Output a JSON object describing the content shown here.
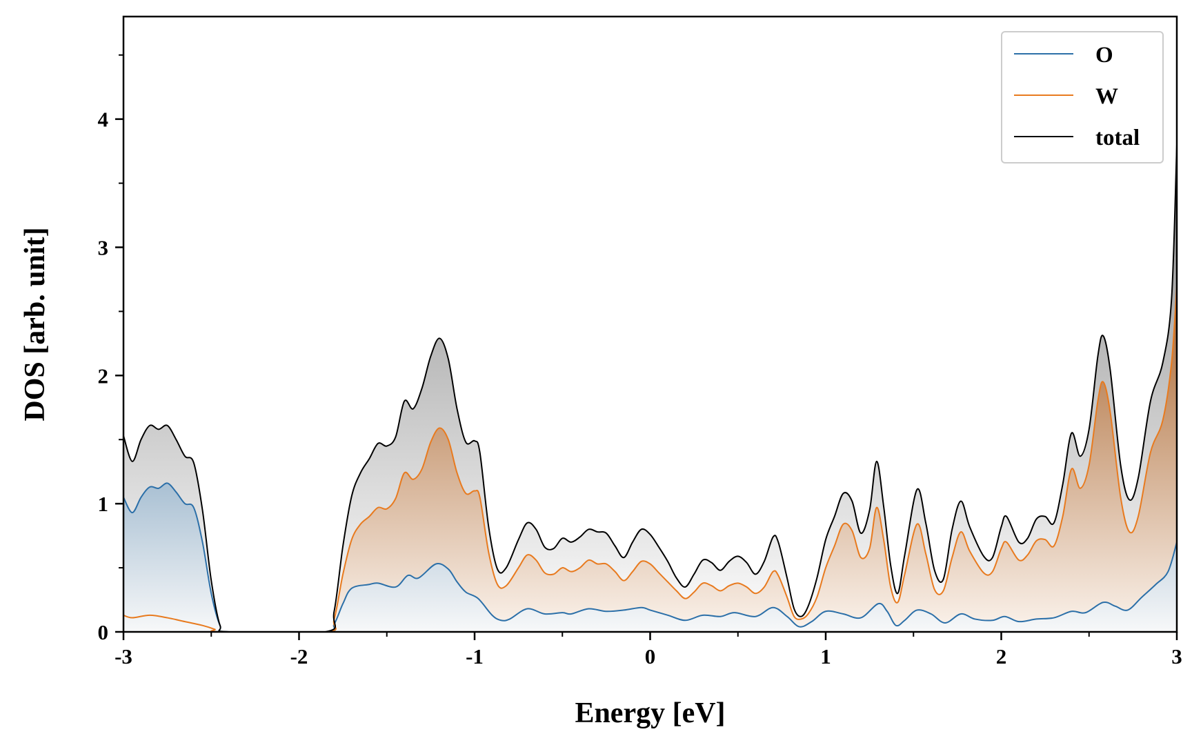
{
  "chart_data": {
    "type": "area",
    "xlabel": "Energy [eV]",
    "ylabel": "DOS [arb. unit]",
    "xlim": [
      -3,
      3
    ],
    "ylim": [
      0,
      4.8
    ],
    "x_ticks": [
      -3,
      -2,
      -1,
      0,
      1,
      2,
      3
    ],
    "x_tick_labels": [
      "-3",
      "-2",
      "-1",
      "0",
      "1",
      "2",
      "3"
    ],
    "y_ticks": [
      0,
      1,
      2,
      3,
      4
    ],
    "y_tick_labels": [
      "0",
      "1",
      "2",
      "3",
      "4"
    ],
    "grid": false,
    "legend": {
      "position": "top-right",
      "entries": [
        "O",
        "W",
        "total"
      ]
    },
    "series": [
      {
        "name": "O",
        "color": "#2b6fa8",
        "fill_gradient": [
          "#a9c0d3",
          "#f7f8f9"
        ],
        "points": [
          [
            -3.0,
            1.05
          ],
          [
            -2.95,
            0.93
          ],
          [
            -2.9,
            1.05
          ],
          [
            -2.85,
            1.13
          ],
          [
            -2.8,
            1.12
          ],
          [
            -2.75,
            1.16
          ],
          [
            -2.7,
            1.09
          ],
          [
            -2.65,
            1.0
          ],
          [
            -2.6,
            0.97
          ],
          [
            -2.55,
            0.7
          ],
          [
            -2.5,
            0.3
          ],
          [
            -2.45,
            0.05
          ],
          [
            -2.4,
            0.0
          ],
          [
            -1.85,
            0.0
          ],
          [
            -1.8,
            0.06
          ],
          [
            -1.75,
            0.22
          ],
          [
            -1.7,
            0.34
          ],
          [
            -1.6,
            0.37
          ],
          [
            -1.55,
            0.38
          ],
          [
            -1.45,
            0.35
          ],
          [
            -1.38,
            0.44
          ],
          [
            -1.32,
            0.42
          ],
          [
            -1.22,
            0.53
          ],
          [
            -1.15,
            0.49
          ],
          [
            -1.1,
            0.39
          ],
          [
            -1.05,
            0.31
          ],
          [
            -0.98,
            0.26
          ],
          [
            -0.9,
            0.13
          ],
          [
            -0.85,
            0.09
          ],
          [
            -0.8,
            0.1
          ],
          [
            -0.7,
            0.18
          ],
          [
            -0.6,
            0.14
          ],
          [
            -0.5,
            0.15
          ],
          [
            -0.45,
            0.14
          ],
          [
            -0.35,
            0.18
          ],
          [
            -0.25,
            0.16
          ],
          [
            -0.15,
            0.17
          ],
          [
            -0.05,
            0.19
          ],
          [
            0.0,
            0.17
          ],
          [
            0.1,
            0.13
          ],
          [
            0.2,
            0.09
          ],
          [
            0.3,
            0.13
          ],
          [
            0.4,
            0.12
          ],
          [
            0.48,
            0.15
          ],
          [
            0.6,
            0.12
          ],
          [
            0.7,
            0.19
          ],
          [
            0.78,
            0.12
          ],
          [
            0.85,
            0.04
          ],
          [
            0.92,
            0.08
          ],
          [
            1.0,
            0.16
          ],
          [
            1.1,
            0.14
          ],
          [
            1.2,
            0.11
          ],
          [
            1.3,
            0.22
          ],
          [
            1.35,
            0.16
          ],
          [
            1.4,
            0.05
          ],
          [
            1.45,
            0.09
          ],
          [
            1.52,
            0.17
          ],
          [
            1.6,
            0.14
          ],
          [
            1.68,
            0.07
          ],
          [
            1.77,
            0.14
          ],
          [
            1.85,
            0.1
          ],
          [
            1.95,
            0.09
          ],
          [
            2.02,
            0.12
          ],
          [
            2.1,
            0.08
          ],
          [
            2.2,
            0.1
          ],
          [
            2.3,
            0.11
          ],
          [
            2.4,
            0.16
          ],
          [
            2.48,
            0.15
          ],
          [
            2.58,
            0.23
          ],
          [
            2.65,
            0.2
          ],
          [
            2.72,
            0.17
          ],
          [
            2.8,
            0.27
          ],
          [
            2.88,
            0.37
          ],
          [
            2.95,
            0.47
          ],
          [
            3.0,
            0.7
          ]
        ]
      },
      {
        "name": "W",
        "color": "#e87a1e",
        "fill_gradient": [
          "#a9652f",
          "#fbf3ec"
        ],
        "points": [
          [
            -3.0,
            0.13
          ],
          [
            -2.95,
            0.11
          ],
          [
            -2.85,
            0.13
          ],
          [
            -2.75,
            0.11
          ],
          [
            -2.65,
            0.08
          ],
          [
            -2.55,
            0.05
          ],
          [
            -2.48,
            0.02
          ],
          [
            -2.45,
            0.0
          ],
          [
            -1.85,
            0.0
          ],
          [
            -1.8,
            0.1
          ],
          [
            -1.75,
            0.45
          ],
          [
            -1.7,
            0.72
          ],
          [
            -1.65,
            0.84
          ],
          [
            -1.6,
            0.9
          ],
          [
            -1.55,
            0.97
          ],
          [
            -1.5,
            0.96
          ],
          [
            -1.45,
            1.04
          ],
          [
            -1.4,
            1.24
          ],
          [
            -1.35,
            1.19
          ],
          [
            -1.3,
            1.27
          ],
          [
            -1.25,
            1.48
          ],
          [
            -1.2,
            1.59
          ],
          [
            -1.15,
            1.5
          ],
          [
            -1.1,
            1.24
          ],
          [
            -1.05,
            1.08
          ],
          [
            -1.0,
            1.1
          ],
          [
            -0.97,
            1.05
          ],
          [
            -0.92,
            0.62
          ],
          [
            -0.87,
            0.37
          ],
          [
            -0.82,
            0.36
          ],
          [
            -0.75,
            0.5
          ],
          [
            -0.7,
            0.6
          ],
          [
            -0.65,
            0.56
          ],
          [
            -0.6,
            0.46
          ],
          [
            -0.55,
            0.45
          ],
          [
            -0.5,
            0.5
          ],
          [
            -0.45,
            0.47
          ],
          [
            -0.4,
            0.5
          ],
          [
            -0.35,
            0.56
          ],
          [
            -0.3,
            0.53
          ],
          [
            -0.25,
            0.53
          ],
          [
            -0.2,
            0.47
          ],
          [
            -0.15,
            0.4
          ],
          [
            -0.1,
            0.47
          ],
          [
            -0.05,
            0.55
          ],
          [
            0.0,
            0.53
          ],
          [
            0.05,
            0.46
          ],
          [
            0.1,
            0.39
          ],
          [
            0.15,
            0.32
          ],
          [
            0.2,
            0.26
          ],
          [
            0.25,
            0.31
          ],
          [
            0.3,
            0.38
          ],
          [
            0.35,
            0.36
          ],
          [
            0.4,
            0.32
          ],
          [
            0.45,
            0.36
          ],
          [
            0.5,
            0.38
          ],
          [
            0.55,
            0.35
          ],
          [
            0.6,
            0.3
          ],
          [
            0.65,
            0.35
          ],
          [
            0.7,
            0.47
          ],
          [
            0.73,
            0.44
          ],
          [
            0.78,
            0.27
          ],
          [
            0.82,
            0.12
          ],
          [
            0.86,
            0.1
          ],
          [
            0.9,
            0.14
          ],
          [
            0.95,
            0.27
          ],
          [
            1.0,
            0.5
          ],
          [
            1.05,
            0.67
          ],
          [
            1.1,
            0.84
          ],
          [
            1.15,
            0.79
          ],
          [
            1.2,
            0.58
          ],
          [
            1.25,
            0.65
          ],
          [
            1.29,
            0.97
          ],
          [
            1.33,
            0.72
          ],
          [
            1.37,
            0.35
          ],
          [
            1.41,
            0.23
          ],
          [
            1.45,
            0.45
          ],
          [
            1.52,
            0.84
          ],
          [
            1.57,
            0.61
          ],
          [
            1.62,
            0.33
          ],
          [
            1.67,
            0.32
          ],
          [
            1.72,
            0.58
          ],
          [
            1.77,
            0.78
          ],
          [
            1.82,
            0.63
          ],
          [
            1.9,
            0.46
          ],
          [
            1.95,
            0.47
          ],
          [
            2.0,
            0.65
          ],
          [
            2.03,
            0.7
          ],
          [
            2.1,
            0.56
          ],
          [
            2.15,
            0.6
          ],
          [
            2.2,
            0.71
          ],
          [
            2.25,
            0.72
          ],
          [
            2.3,
            0.67
          ],
          [
            2.35,
            0.9
          ],
          [
            2.4,
            1.27
          ],
          [
            2.45,
            1.12
          ],
          [
            2.5,
            1.3
          ],
          [
            2.55,
            1.8
          ],
          [
            2.58,
            1.95
          ],
          [
            2.62,
            1.72
          ],
          [
            2.68,
            1.05
          ],
          [
            2.73,
            0.78
          ],
          [
            2.78,
            0.9
          ],
          [
            2.85,
            1.4
          ],
          [
            2.92,
            1.65
          ],
          [
            2.97,
            2.1
          ],
          [
            3.0,
            2.7
          ]
        ]
      },
      {
        "name": "total",
        "color": "#000000",
        "fill_gradient": [
          "#888888",
          "#ffffff"
        ],
        "points": [
          [
            -3.0,
            1.53
          ],
          [
            -2.95,
            1.33
          ],
          [
            -2.9,
            1.5
          ],
          [
            -2.85,
            1.61
          ],
          [
            -2.8,
            1.58
          ],
          [
            -2.75,
            1.61
          ],
          [
            -2.7,
            1.5
          ],
          [
            -2.65,
            1.37
          ],
          [
            -2.6,
            1.32
          ],
          [
            -2.55,
            0.95
          ],
          [
            -2.5,
            0.4
          ],
          [
            -2.45,
            0.05
          ],
          [
            -2.4,
            0.0
          ],
          [
            -1.85,
            0.0
          ],
          [
            -1.8,
            0.16
          ],
          [
            -1.75,
            0.67
          ],
          [
            -1.7,
            1.06
          ],
          [
            -1.65,
            1.24
          ],
          [
            -1.6,
            1.35
          ],
          [
            -1.55,
            1.47
          ],
          [
            -1.5,
            1.45
          ],
          [
            -1.45,
            1.52
          ],
          [
            -1.4,
            1.8
          ],
          [
            -1.35,
            1.74
          ],
          [
            -1.3,
            1.9
          ],
          [
            -1.25,
            2.15
          ],
          [
            -1.2,
            2.29
          ],
          [
            -1.15,
            2.13
          ],
          [
            -1.1,
            1.74
          ],
          [
            -1.05,
            1.48
          ],
          [
            -1.0,
            1.49
          ],
          [
            -0.97,
            1.4
          ],
          [
            -0.92,
            0.82
          ],
          [
            -0.87,
            0.49
          ],
          [
            -0.82,
            0.5
          ],
          [
            -0.75,
            0.72
          ],
          [
            -0.7,
            0.85
          ],
          [
            -0.65,
            0.8
          ],
          [
            -0.6,
            0.66
          ],
          [
            -0.55,
            0.65
          ],
          [
            -0.5,
            0.73
          ],
          [
            -0.45,
            0.7
          ],
          [
            -0.4,
            0.74
          ],
          [
            -0.35,
            0.8
          ],
          [
            -0.3,
            0.78
          ],
          [
            -0.25,
            0.77
          ],
          [
            -0.2,
            0.67
          ],
          [
            -0.15,
            0.58
          ],
          [
            -0.1,
            0.7
          ],
          [
            -0.05,
            0.8
          ],
          [
            0.0,
            0.76
          ],
          [
            0.05,
            0.66
          ],
          [
            0.1,
            0.55
          ],
          [
            0.15,
            0.42
          ],
          [
            0.2,
            0.35
          ],
          [
            0.25,
            0.45
          ],
          [
            0.3,
            0.56
          ],
          [
            0.35,
            0.54
          ],
          [
            0.4,
            0.48
          ],
          [
            0.45,
            0.55
          ],
          [
            0.5,
            0.59
          ],
          [
            0.55,
            0.54
          ],
          [
            0.6,
            0.45
          ],
          [
            0.65,
            0.55
          ],
          [
            0.7,
            0.74
          ],
          [
            0.73,
            0.7
          ],
          [
            0.78,
            0.42
          ],
          [
            0.82,
            0.18
          ],
          [
            0.86,
            0.12
          ],
          [
            0.9,
            0.2
          ],
          [
            0.95,
            0.42
          ],
          [
            1.0,
            0.72
          ],
          [
            1.05,
            0.9
          ],
          [
            1.1,
            1.08
          ],
          [
            1.15,
            1.02
          ],
          [
            1.2,
            0.77
          ],
          [
            1.25,
            0.95
          ],
          [
            1.29,
            1.33
          ],
          [
            1.33,
            0.98
          ],
          [
            1.37,
            0.52
          ],
          [
            1.41,
            0.3
          ],
          [
            1.45,
            0.6
          ],
          [
            1.52,
            1.11
          ],
          [
            1.57,
            0.85
          ],
          [
            1.62,
            0.48
          ],
          [
            1.67,
            0.41
          ],
          [
            1.72,
            0.8
          ],
          [
            1.77,
            1.02
          ],
          [
            1.82,
            0.82
          ],
          [
            1.9,
            0.59
          ],
          [
            1.95,
            0.58
          ],
          [
            2.0,
            0.82
          ],
          [
            2.03,
            0.9
          ],
          [
            2.1,
            0.7
          ],
          [
            2.15,
            0.73
          ],
          [
            2.2,
            0.88
          ],
          [
            2.25,
            0.9
          ],
          [
            2.3,
            0.85
          ],
          [
            2.35,
            1.15
          ],
          [
            2.4,
            1.55
          ],
          [
            2.45,
            1.37
          ],
          [
            2.5,
            1.58
          ],
          [
            2.55,
            2.15
          ],
          [
            2.58,
            2.31
          ],
          [
            2.62,
            2.05
          ],
          [
            2.68,
            1.3
          ],
          [
            2.73,
            1.03
          ],
          [
            2.78,
            1.2
          ],
          [
            2.85,
            1.8
          ],
          [
            2.92,
            2.1
          ],
          [
            2.97,
            2.6
          ],
          [
            3.0,
            3.8
          ]
        ]
      }
    ]
  }
}
